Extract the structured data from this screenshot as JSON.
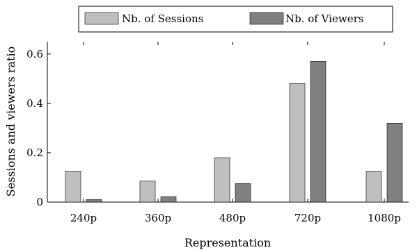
{
  "chart_data": {
    "type": "bar",
    "categories": [
      "240p",
      "360p",
      "480p",
      "720p",
      "1080p"
    ],
    "series": [
      {
        "name": "Nb. of Sessions",
        "values": [
          0.125,
          0.085,
          0.18,
          0.48,
          0.125
        ],
        "color": "#bfbfbf"
      },
      {
        "name": "Nb. of Viewers",
        "values": [
          0.01,
          0.022,
          0.075,
          0.57,
          0.32
        ],
        "color": "#808080"
      }
    ],
    "xlabel": "Representation",
    "ylabel": "Sessions and viewers ratio",
    "ylim": [
      0,
      0.65
    ],
    "yticks": [
      0,
      0.2,
      0.4,
      0.6
    ],
    "ytick_labels": [
      "0",
      "0.2",
      "0.4",
      "0.6"
    ],
    "grid": false,
    "legend_position": "top-center"
  }
}
